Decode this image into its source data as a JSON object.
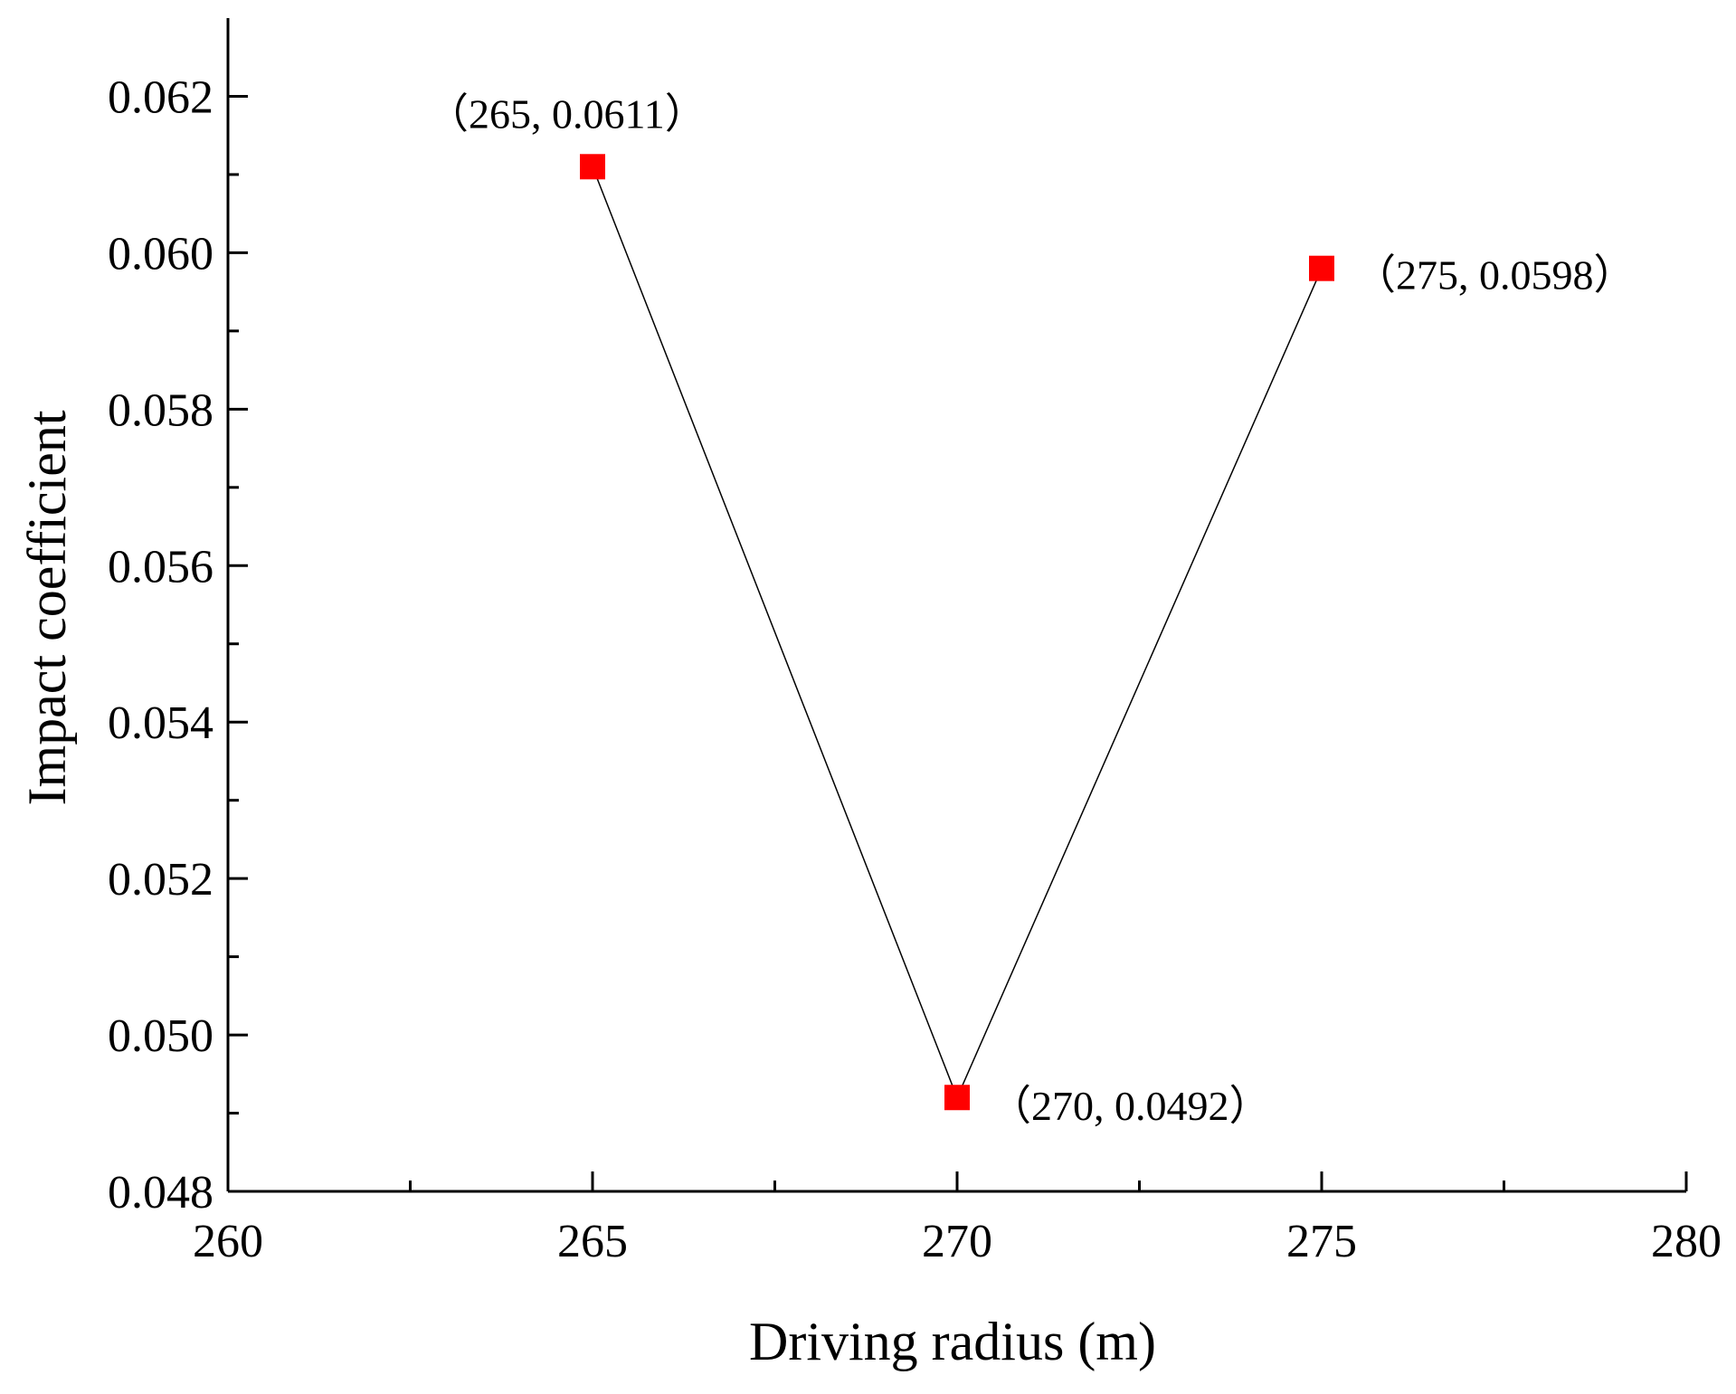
{
  "chart_data": {
    "type": "line",
    "title": "",
    "xlabel": "Driving radius (m)",
    "ylabel": "Impact coefficient",
    "xlim": [
      260,
      280
    ],
    "ylim": [
      0.048,
      0.063
    ],
    "x_ticks": [
      "260",
      "265",
      "270",
      "275",
      "280"
    ],
    "y_ticks": [
      "0.048",
      "0.050",
      "0.052",
      "0.054",
      "0.056",
      "0.058",
      "0.060",
      "0.062"
    ],
    "x_tick_values": [
      260,
      265,
      270,
      275,
      280
    ],
    "y_tick_values": [
      0.048,
      0.05,
      0.052,
      0.054,
      0.056,
      0.058,
      0.06,
      0.062
    ],
    "x_minor_tick_values": [
      262.5,
      267.5,
      272.5,
      277.5
    ],
    "y_minor_tick_values": [
      0.049,
      0.051,
      0.053,
      0.055,
      0.057,
      0.059,
      0.061
    ],
    "grid": false,
    "legend": "none",
    "series": [
      {
        "x": [
          265,
          270,
          275
        ],
        "y": [
          0.0611,
          0.0492,
          0.0598
        ],
        "marker": "square",
        "marker_color": "#ff0000",
        "line_color": "#000000"
      }
    ],
    "annotations": [
      {
        "text": "（265, 0.0611）",
        "x": 265,
        "y": 0.0611
      },
      {
        "text": "（270, 0.0492）",
        "x": 270,
        "y": 0.0492
      },
      {
        "text": "（275, 0.0598）",
        "x": 275,
        "y": 0.0598
      }
    ]
  }
}
